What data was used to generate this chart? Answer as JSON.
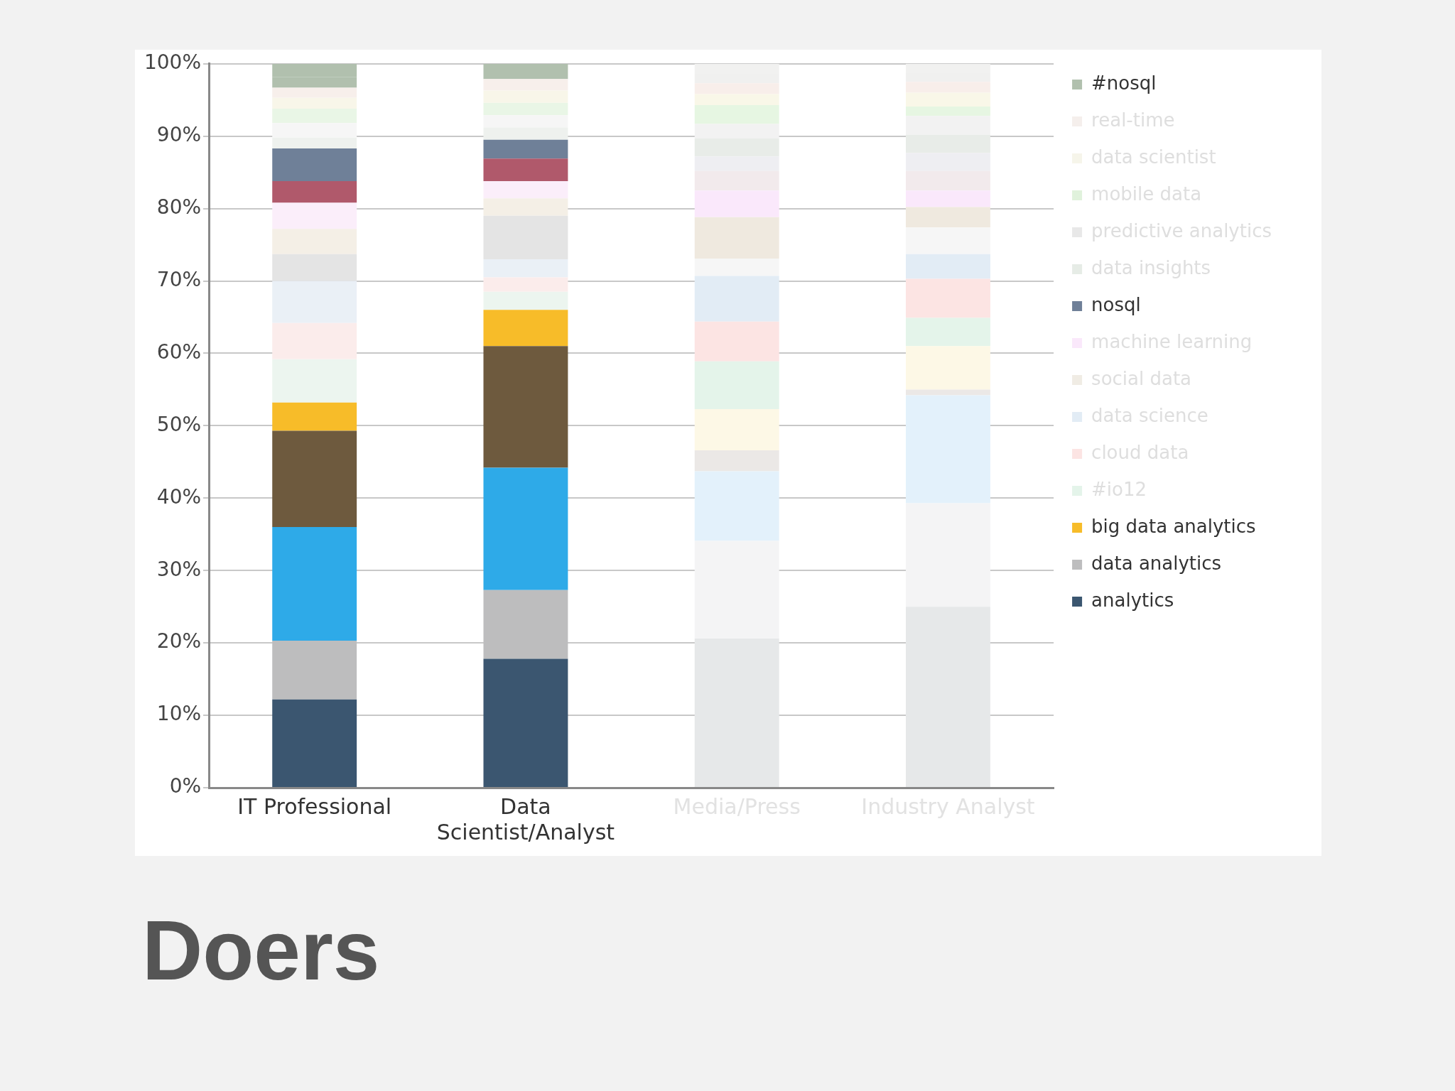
{
  "chart_data": {
    "type": "bar",
    "title": "Doers",
    "stacked": true,
    "grid": "y",
    "legend": "right",
    "categories": [
      "IT Professional",
      "Data Scientist/Analyst",
      "Media/Press",
      "Industry Analyst"
    ],
    "ylim": [
      0,
      100
    ],
    "yticks": [
      {
        "value": 0,
        "label": "0%"
      },
      {
        "value": 10,
        "label": "10%"
      },
      {
        "value": 20,
        "label": "20%"
      },
      {
        "value": 30,
        "label": "30%"
      },
      {
        "value": 40,
        "label": "40%"
      },
      {
        "value": 50,
        "label": "50%"
      },
      {
        "value": 60,
        "label": "60%"
      },
      {
        "value": 70,
        "label": "70%"
      },
      {
        "value": 80,
        "label": "80%"
      },
      {
        "value": 90,
        "label": "90%"
      },
      {
        "value": 100,
        "label": "100%"
      }
    ],
    "series": [
      {
        "name": "analytics",
        "color": "#3b5670",
        "colors": [
          "#3b5670",
          "#3b5670",
          "#e6e8e9",
          "#e6e8e9"
        ],
        "values": [
          12.2,
          17.8,
          20.6,
          25
        ]
      },
      {
        "name": "data analytics",
        "color": "#bdbdbe",
        "colors": [
          "#bdbdbe",
          "#bdbdbe",
          "#f4f4f5",
          "#f4f4f5"
        ],
        "values": [
          8.1,
          9.5,
          13.5,
          14.3
        ]
      },
      {
        "color": "#2eaae8",
        "colors": [
          "#2eaae8",
          "#2eaae8",
          "#e3f1fb",
          "#e3f1fb"
        ],
        "values": [
          15.7,
          16.9,
          9.6,
          14.9
        ]
      },
      {
        "color": "#6e5a3e",
        "colors": [
          "#6e5a3e",
          "#6e5a3e",
          "#ebe8e6",
          "#ebe8e6"
        ],
        "values": [
          13.3,
          16.8,
          2.9,
          0.8
        ]
      },
      {
        "name": "big data analytics",
        "color": "#f7bc29",
        "colors": [
          "#f7bc29",
          "#f7bc29",
          "#fdf8e6",
          "#fdf8e6"
        ],
        "values": [
          3.9,
          5,
          5.7,
          6
        ]
      },
      {
        "name": "#io12",
        "color": "#e4f4ea",
        "colors": [
          "#ecf5ef",
          "#ecf5ef",
          "#e4f4ea",
          "#e4f4ea"
        ],
        "values": [
          6,
          2.5,
          6.6,
          3.9
        ]
      },
      {
        "name": "cloud data",
        "color": "#fce4e3",
        "colors": [
          "#fbeceb",
          "#fbeceb",
          "#fce4e3",
          "#fce4e3"
        ],
        "values": [
          5,
          2,
          5.5,
          5.4
        ]
      },
      {
        "name": "data science",
        "color": "#e2ecf5",
        "colors": [
          "#eaf0f6",
          "#eaf0f6",
          "#e2ecf5",
          "#e2ecf5"
        ],
        "values": [
          5.8,
          2.5,
          6.3,
          3.4
        ]
      },
      {
        "color": "#e3e3e3",
        "colors": [
          "#e4e4e4",
          "#e4e4e4",
          "#f6f6f6",
          "#f6f6f6"
        ],
        "values": [
          3.7,
          6,
          2.4,
          3.7
        ]
      },
      {
        "name": "social data",
        "color": "#f0ece4",
        "colors": [
          "#f4efe6",
          "#f4efe6",
          "#efe9df",
          "#efe9df"
        ],
        "values": [
          3.5,
          2.4,
          5.7,
          2.8
        ]
      },
      {
        "name": "machine learning",
        "color": "#fae8fb",
        "colors": [
          "#fbeefa",
          "#fbeefa",
          "#fae8fb",
          "#fae8fb"
        ],
        "values": [
          3.6,
          2.4,
          3.7,
          2.3
        ]
      },
      {
        "color": "#b0596b",
        "colors": [
          "#b0596b",
          "#b0596b",
          "#f2eaec",
          "#f2eaec"
        ],
        "values": [
          3,
          3.1,
          2.7,
          2.7
        ]
      },
      {
        "name": "nosql",
        "color": "#6f8098",
        "colors": [
          "#6f8098",
          "#6f8098",
          "#eeeef2",
          "#eeeef2"
        ],
        "values": [
          4.5,
          2.6,
          2,
          2.5
        ]
      },
      {
        "name": "data insights",
        "color": "#e6ece6",
        "colors": [
          "#eef1ee",
          "#eef1ee",
          "#e8ece8",
          "#e8ece8"
        ],
        "values": [
          1.5,
          1.7,
          2.5,
          2.5
        ]
      },
      {
        "name": "predictive analytics",
        "color": "#e8e8e8",
        "colors": [
          "#f6f6f6",
          "#f6f6f6",
          "#f2f2f2",
          "#f2f2f2"
        ],
        "values": [
          2,
          1.7,
          2,
          2.6
        ]
      },
      {
        "name": "mobile data",
        "color": "#e0f2dc",
        "colors": [
          "#e9f6e6",
          "#e9f6e6",
          "#e6f6e2",
          "#e6f6e2"
        ],
        "values": [
          2,
          1.7,
          2.6,
          1.3
        ]
      },
      {
        "name": "data scientist",
        "color": "#f6f5ea",
        "colors": [
          "#f8f6e9",
          "#f8f6e9",
          "#f9f7e8",
          "#f9f7e8"
        ],
        "values": [
          1.5,
          1.7,
          1.5,
          1.9
        ]
      },
      {
        "name": "real-time",
        "color": "#f5efec",
        "colors": [
          "#f7efeb",
          "#f7efeb",
          "#f8eeea",
          "#f8eeea"
        ],
        "values": [
          1.4,
          1.6,
          1.5,
          1.5
        ]
      },
      {
        "color": "#a8a8a8",
        "colors": [
          "#b1c0ae",
          "#b1c0ae",
          "#f0f0ef",
          "#f0f0ef"
        ],
        "values": [
          1.5,
          0.9,
          1.3,
          1.2
        ]
      },
      {
        "name": "#nosql",
        "color": "#b1c0ae",
        "colors": [
          "#b1c0ae",
          "#b1c0ae",
          "#f1f1f0",
          "#f1f1f0"
        ],
        "values": [
          1.8,
          1.2,
          1.4,
          1.3
        ]
      }
    ]
  }
}
